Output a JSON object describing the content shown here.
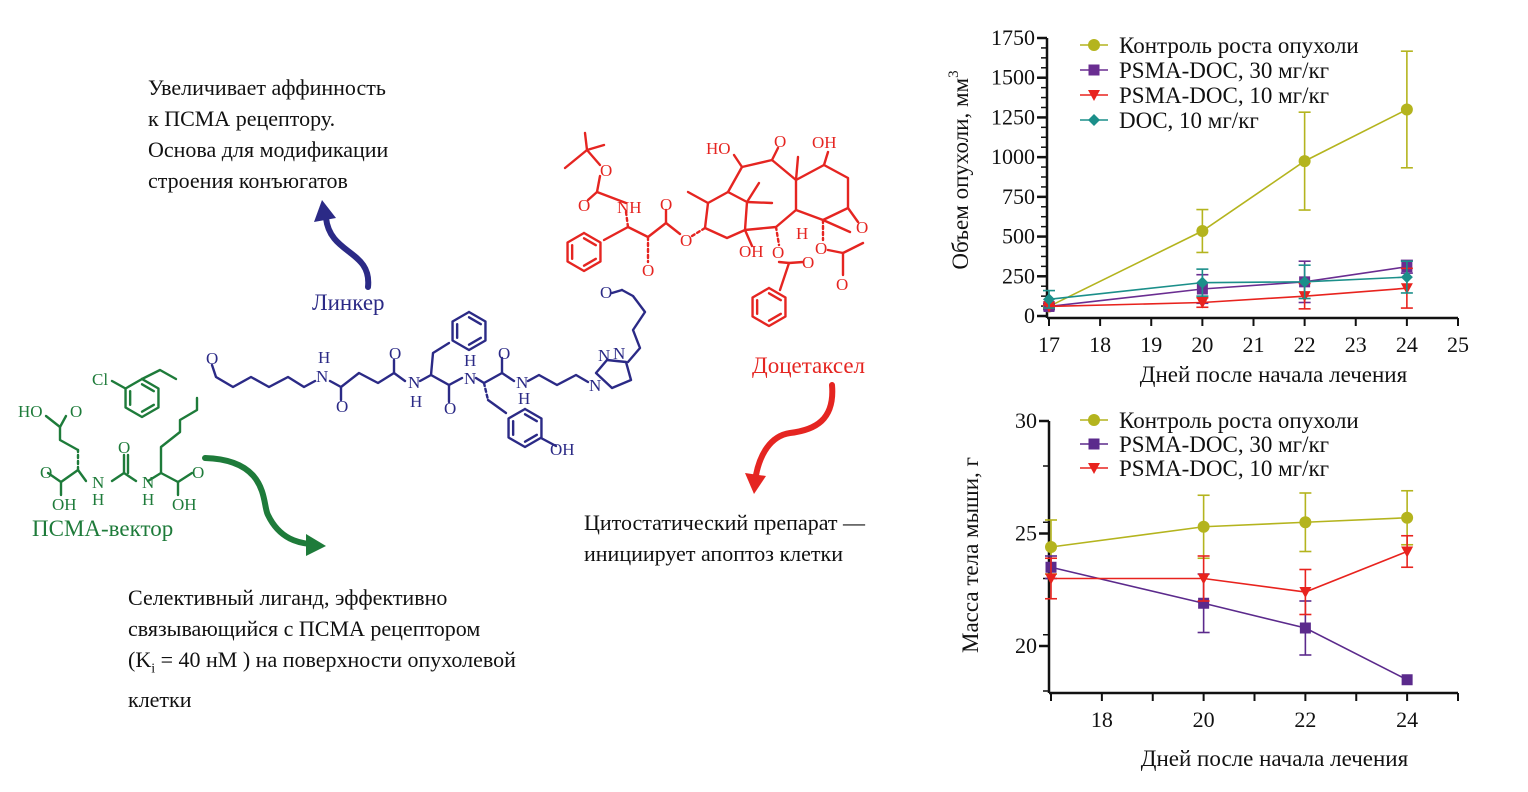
{
  "colors": {
    "green": "#1e7b3a",
    "navy": "#2b2a86",
    "red": "#e52521",
    "olive": "#b4b41e",
    "purple": "#6a2d91",
    "teal": "#1b8f8a"
  },
  "annotations": {
    "linker_note": [
      "Увеличивает аффинность",
      "к ПСМА рецептору.",
      "Основа для модификации",
      "строения конъюгатов"
    ],
    "linker_label": "Линкер",
    "docetaxel_label": "Доцетаксел",
    "vector_label": "ПСМА-вектор",
    "docetaxel_note": [
      "Цитостатический препарат —",
      "инициирует апоптоз клетки"
    ],
    "vector_note": {
      "line1": "Селективный лиганд, эффективно",
      "line2": "связывающийся с ПСМА рецептором",
      "line3_pre": "(K",
      "line3_sub": "i",
      "line3_post": " = 40 нМ ) на поверхности опухолевой",
      "line4": "клетки"
    }
  },
  "molecule": {
    "green_labels": [
      "Cl",
      "HO",
      "O",
      "O",
      "OH",
      "N",
      "H",
      "O",
      "N",
      "H",
      "O",
      "OH"
    ],
    "navy_labels": [
      "O",
      "H",
      "N",
      "O",
      "O",
      "N",
      "H",
      "O",
      "H",
      "N",
      "O",
      "N",
      "H",
      "OH",
      "N",
      "N",
      "N",
      "O"
    ],
    "red_labels": [
      "O",
      "O",
      "NH",
      "O",
      "O",
      "O",
      "HO",
      "O",
      "OH",
      "OH",
      "O",
      "H",
      "O",
      "O",
      "O",
      "O"
    ]
  },
  "chart_data": [
    {
      "type": "line",
      "title": "",
      "xlabel": "Дней после начала лечения",
      "ylabel": "Объем опухоли, мм",
      "ylabel_sup": "3",
      "xlim": [
        17,
        25
      ],
      "ylim": [
        0,
        1750
      ],
      "xticks": [
        17,
        18,
        19,
        20,
        21,
        22,
        23,
        24,
        25
      ],
      "yticks": [
        0,
        250,
        500,
        750,
        1000,
        1250,
        1500,
        1750
      ],
      "legend_position": "top",
      "x": [
        17,
        20,
        22,
        24
      ],
      "series": [
        {
          "name": "Контроль роста опухоли",
          "marker": "circle",
          "color": "#b4b41e",
          "values": [
            60,
            535,
            975,
            1300
          ],
          "yerr": [
            0,
            135,
            308,
            367
          ]
        },
        {
          "name": "PSMA-DOC, 30 мг/кг",
          "marker": "square",
          "color": "#6a2d91",
          "values": [
            60,
            170,
            215,
            310
          ],
          "yerr": [
            20,
            90,
            130,
            40
          ]
        },
        {
          "name": "PSMA-DOC, 10 мг/кг",
          "marker": "triangle-down",
          "color": "#e8231e",
          "values": [
            60,
            85,
            125,
            175
          ],
          "yerr": [
            10,
            30,
            80,
            125
          ]
        },
        {
          "name": "DOC, 10 мг/кг",
          "marker": "diamond",
          "color": "#1b8f8a",
          "values": [
            105,
            210,
            215,
            245
          ],
          "yerr": [
            55,
            85,
            105,
            100
          ]
        }
      ]
    },
    {
      "type": "line",
      "title": "",
      "xlabel": "Дней после начала лечения",
      "ylabel": "Масса тела мыши, г",
      "xlim": [
        17,
        25
      ],
      "ylim": [
        18,
        30
      ],
      "xticks": [
        18,
        20,
        22,
        24
      ],
      "yticks": [
        20,
        25,
        30
      ],
      "legend_position": "top",
      "x": [
        17,
        20,
        22,
        24
      ],
      "series": [
        {
          "name": "Контроль роста опухоли",
          "marker": "circle",
          "color": "#b4b41e",
          "values": [
            24.4,
            25.3,
            25.5,
            25.7
          ],
          "yerr": [
            1.2,
            1.4,
            1.3,
            1.2
          ]
        },
        {
          "name": "PSMA-DOC, 30 мг/кг",
          "marker": "square",
          "color": "#5b2a8c",
          "values": [
            23.5,
            21.9,
            20.8,
            18.5
          ],
          "yerr": [
            0.5,
            1.3,
            1.2,
            0
          ]
        },
        {
          "name": "PSMA-DOC, 10 мг/кг",
          "marker": "triangle-down",
          "color": "#e8231e",
          "values": [
            23.0,
            23.0,
            22.4,
            24.2
          ],
          "yerr": [
            0.9,
            1.0,
            1.0,
            0.7
          ]
        }
      ]
    }
  ]
}
